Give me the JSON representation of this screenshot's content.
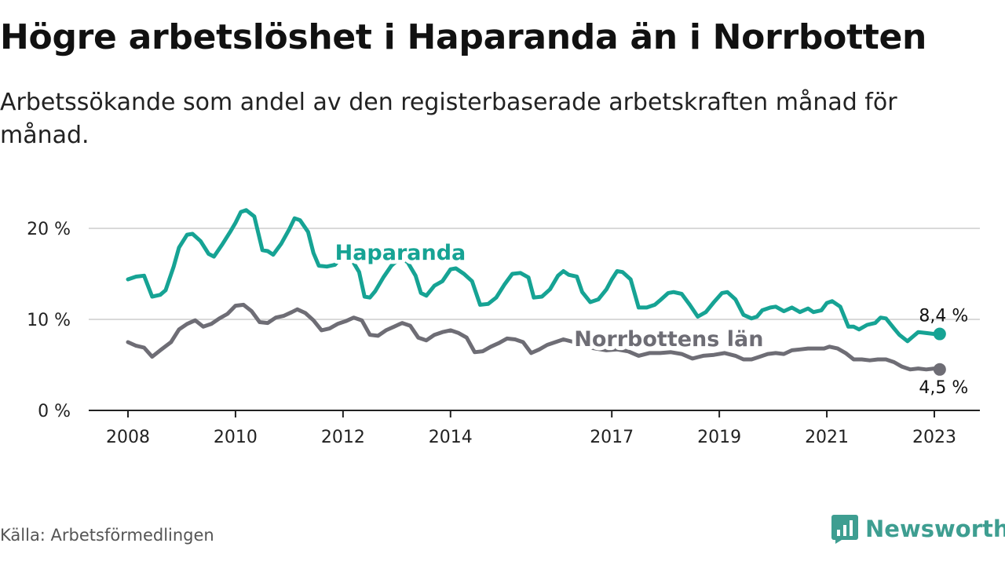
{
  "title": "Högre arbetslöshet i Haparanda än i Norrbotten",
  "subtitle": "Arbetssökande som andel av den registerbaserade arbetskraften månad för månad.",
  "source": "Källa: Arbetsförmedlingen",
  "brand": {
    "name": "Newsworthy",
    "logo_icon": "newsworthy-logo-icon"
  },
  "colors": {
    "haparanda": "#16a394",
    "norrbotten": "#6e6d75",
    "grid": "#d9d9d9",
    "axis": "#222222",
    "brand": "#3e9e91"
  },
  "chart_data": {
    "type": "line",
    "xlim": [
      2008.0,
      2023.25
    ],
    "ylim": [
      0,
      22
    ],
    "yticks": [
      {
        "value": 0,
        "label": "0 %"
      },
      {
        "value": 10,
        "label": "10 %"
      },
      {
        "value": 20,
        "label": "20 %"
      }
    ],
    "xticks": [
      {
        "value": 2008,
        "label": "2008"
      },
      {
        "value": 2010,
        "label": "2010"
      },
      {
        "value": 2012,
        "label": "2012"
      },
      {
        "value": 2014,
        "label": "2014"
      },
      {
        "value": 2017,
        "label": "2017"
      },
      {
        "value": 2019,
        "label": "2019"
      },
      {
        "value": 2021,
        "label": "2021"
      },
      {
        "value": 2023,
        "label": "2023"
      }
    ],
    "series": [
      {
        "name": "Haparanda",
        "label_at": 2011.85,
        "end_label": "8,4 %",
        "points": [
          [
            2008.0,
            14.4
          ],
          [
            2008.15,
            14.7
          ],
          [
            2008.3,
            14.8
          ],
          [
            2008.45,
            12.5
          ],
          [
            2008.6,
            12.7
          ],
          [
            2008.7,
            13.2
          ],
          [
            2008.85,
            15.8
          ],
          [
            2008.95,
            17.9
          ],
          [
            2009.1,
            19.3
          ],
          [
            2009.2,
            19.4
          ],
          [
            2009.35,
            18.6
          ],
          [
            2009.5,
            17.2
          ],
          [
            2009.6,
            16.9
          ],
          [
            2009.75,
            18.2
          ],
          [
            2009.9,
            19.6
          ],
          [
            2010.0,
            20.6
          ],
          [
            2010.1,
            21.8
          ],
          [
            2010.2,
            22.0
          ],
          [
            2010.35,
            21.3
          ],
          [
            2010.5,
            17.6
          ],
          [
            2010.6,
            17.5
          ],
          [
            2010.7,
            17.1
          ],
          [
            2010.85,
            18.3
          ],
          [
            2011.0,
            19.9
          ],
          [
            2011.1,
            21.1
          ],
          [
            2011.2,
            20.9
          ],
          [
            2011.35,
            19.6
          ],
          [
            2011.45,
            17.3
          ],
          [
            2011.55,
            15.9
          ],
          [
            2011.7,
            15.8
          ],
          [
            2011.85,
            16.0
          ],
          [
            2012.0,
            17.1
          ],
          [
            2012.15,
            16.7
          ],
          [
            2012.3,
            15.2
          ],
          [
            2012.4,
            12.5
          ],
          [
            2012.5,
            12.4
          ],
          [
            2012.6,
            13.1
          ],
          [
            2012.75,
            14.6
          ],
          [
            2012.9,
            15.9
          ],
          [
            2013.05,
            16.7
          ],
          [
            2013.2,
            16.3
          ],
          [
            2013.35,
            14.8
          ],
          [
            2013.45,
            12.9
          ],
          [
            2013.55,
            12.6
          ],
          [
            2013.7,
            13.7
          ],
          [
            2013.85,
            14.2
          ],
          [
            2014.0,
            15.5
          ],
          [
            2014.1,
            15.6
          ],
          [
            2014.25,
            15.0
          ],
          [
            2014.4,
            14.2
          ],
          [
            2014.55,
            11.6
          ],
          [
            2014.7,
            11.7
          ],
          [
            2014.85,
            12.4
          ],
          [
            2015.0,
            13.8
          ],
          [
            2015.15,
            15.0
          ],
          [
            2015.3,
            15.1
          ],
          [
            2015.45,
            14.6
          ],
          [
            2015.55,
            12.4
          ],
          [
            2015.7,
            12.5
          ],
          [
            2015.85,
            13.3
          ],
          [
            2016.0,
            14.8
          ],
          [
            2016.1,
            15.3
          ],
          [
            2016.2,
            14.9
          ],
          [
            2016.35,
            14.7
          ],
          [
            2016.45,
            13.0
          ],
          [
            2016.6,
            11.9
          ],
          [
            2016.75,
            12.2
          ],
          [
            2016.9,
            13.3
          ],
          [
            2017.0,
            14.4
          ],
          [
            2017.1,
            15.3
          ],
          [
            2017.2,
            15.2
          ],
          [
            2017.35,
            14.4
          ],
          [
            2017.5,
            11.3
          ],
          [
            2017.65,
            11.3
          ],
          [
            2017.8,
            11.6
          ],
          [
            2017.9,
            12.1
          ],
          [
            2018.05,
            12.9
          ],
          [
            2018.15,
            13.0
          ],
          [
            2018.3,
            12.8
          ],
          [
            2018.45,
            11.6
          ],
          [
            2018.6,
            10.3
          ],
          [
            2018.75,
            10.8
          ],
          [
            2018.9,
            11.9
          ],
          [
            2019.05,
            12.9
          ],
          [
            2019.15,
            13.0
          ],
          [
            2019.3,
            12.2
          ],
          [
            2019.45,
            10.5
          ],
          [
            2019.6,
            10.1
          ],
          [
            2019.7,
            10.3
          ],
          [
            2019.8,
            11.0
          ],
          [
            2019.95,
            11.3
          ],
          [
            2020.05,
            11.4
          ],
          [
            2020.2,
            10.9
          ],
          [
            2020.35,
            11.3
          ],
          [
            2020.5,
            10.8
          ],
          [
            2020.65,
            11.2
          ],
          [
            2020.75,
            10.8
          ],
          [
            2020.9,
            11.0
          ],
          [
            2021.0,
            11.8
          ],
          [
            2021.1,
            12.0
          ],
          [
            2021.25,
            11.4
          ],
          [
            2021.4,
            9.2
          ],
          [
            2021.5,
            9.2
          ],
          [
            2021.6,
            8.9
          ],
          [
            2021.75,
            9.4
          ],
          [
            2021.9,
            9.6
          ],
          [
            2022.0,
            10.2
          ],
          [
            2022.1,
            10.1
          ],
          [
            2022.25,
            9.0
          ],
          [
            2022.35,
            8.3
          ],
          [
            2022.5,
            7.6
          ],
          [
            2022.6,
            8.1
          ],
          [
            2022.7,
            8.6
          ],
          [
            2022.85,
            8.5
          ],
          [
            2023.0,
            8.4
          ],
          [
            2023.1,
            8.4
          ]
        ]
      },
      {
        "name": "Norrbottens län",
        "label_at": 2016.3,
        "end_label": "4,5 %",
        "points": [
          [
            2008.0,
            7.5
          ],
          [
            2008.15,
            7.1
          ],
          [
            2008.3,
            6.9
          ],
          [
            2008.45,
            5.9
          ],
          [
            2008.6,
            6.6
          ],
          [
            2008.8,
            7.5
          ],
          [
            2008.95,
            8.9
          ],
          [
            2009.1,
            9.5
          ],
          [
            2009.25,
            9.9
          ],
          [
            2009.4,
            9.2
          ],
          [
            2009.55,
            9.5
          ],
          [
            2009.7,
            10.1
          ],
          [
            2009.85,
            10.6
          ],
          [
            2010.0,
            11.5
          ],
          [
            2010.15,
            11.6
          ],
          [
            2010.3,
            10.9
          ],
          [
            2010.45,
            9.7
          ],
          [
            2010.6,
            9.6
          ],
          [
            2010.75,
            10.2
          ],
          [
            2010.9,
            10.4
          ],
          [
            2011.05,
            10.8
          ],
          [
            2011.15,
            11.1
          ],
          [
            2011.3,
            10.7
          ],
          [
            2011.45,
            9.9
          ],
          [
            2011.6,
            8.8
          ],
          [
            2011.75,
            9.0
          ],
          [
            2011.9,
            9.5
          ],
          [
            2012.05,
            9.8
          ],
          [
            2012.2,
            10.2
          ],
          [
            2012.35,
            9.9
          ],
          [
            2012.5,
            8.3
          ],
          [
            2012.65,
            8.2
          ],
          [
            2012.8,
            8.8
          ],
          [
            2012.95,
            9.2
          ],
          [
            2013.1,
            9.6
          ],
          [
            2013.25,
            9.3
          ],
          [
            2013.4,
            8.0
          ],
          [
            2013.55,
            7.7
          ],
          [
            2013.7,
            8.3
          ],
          [
            2013.85,
            8.6
          ],
          [
            2014.0,
            8.8
          ],
          [
            2014.15,
            8.5
          ],
          [
            2014.3,
            8.0
          ],
          [
            2014.45,
            6.4
          ],
          [
            2014.6,
            6.5
          ],
          [
            2014.75,
            7.0
          ],
          [
            2014.9,
            7.4
          ],
          [
            2015.05,
            7.9
          ],
          [
            2015.2,
            7.8
          ],
          [
            2015.35,
            7.5
          ],
          [
            2015.5,
            6.3
          ],
          [
            2015.65,
            6.7
          ],
          [
            2015.8,
            7.2
          ],
          [
            2015.95,
            7.5
          ],
          [
            2016.1,
            7.8
          ],
          [
            2016.3,
            7.5
          ],
          [
            2016.5,
            7.0
          ],
          [
            2016.7,
            6.8
          ],
          [
            2016.9,
            6.6
          ],
          [
            2017.1,
            6.7
          ],
          [
            2017.3,
            6.5
          ],
          [
            2017.5,
            6.0
          ],
          [
            2017.7,
            6.3
          ],
          [
            2017.9,
            6.3
          ],
          [
            2018.1,
            6.4
          ],
          [
            2018.3,
            6.2
          ],
          [
            2018.5,
            5.7
          ],
          [
            2018.7,
            6.0
          ],
          [
            2018.9,
            6.1
          ],
          [
            2019.1,
            6.3
          ],
          [
            2019.3,
            6.0
          ],
          [
            2019.45,
            5.6
          ],
          [
            2019.6,
            5.6
          ],
          [
            2019.75,
            5.9
          ],
          [
            2019.9,
            6.2
          ],
          [
            2020.05,
            6.3
          ],
          [
            2020.2,
            6.2
          ],
          [
            2020.35,
            6.6
          ],
          [
            2020.5,
            6.7
          ],
          [
            2020.65,
            6.8
          ],
          [
            2020.8,
            6.8
          ],
          [
            2020.95,
            6.8
          ],
          [
            2021.05,
            7.0
          ],
          [
            2021.2,
            6.8
          ],
          [
            2021.35,
            6.3
          ],
          [
            2021.5,
            5.6
          ],
          [
            2021.65,
            5.6
          ],
          [
            2021.8,
            5.5
          ],
          [
            2021.95,
            5.6
          ],
          [
            2022.1,
            5.6
          ],
          [
            2022.25,
            5.3
          ],
          [
            2022.4,
            4.8
          ],
          [
            2022.55,
            4.5
          ],
          [
            2022.7,
            4.6
          ],
          [
            2022.85,
            4.5
          ],
          [
            2023.0,
            4.6
          ],
          [
            2023.1,
            4.5
          ]
        ]
      }
    ]
  }
}
